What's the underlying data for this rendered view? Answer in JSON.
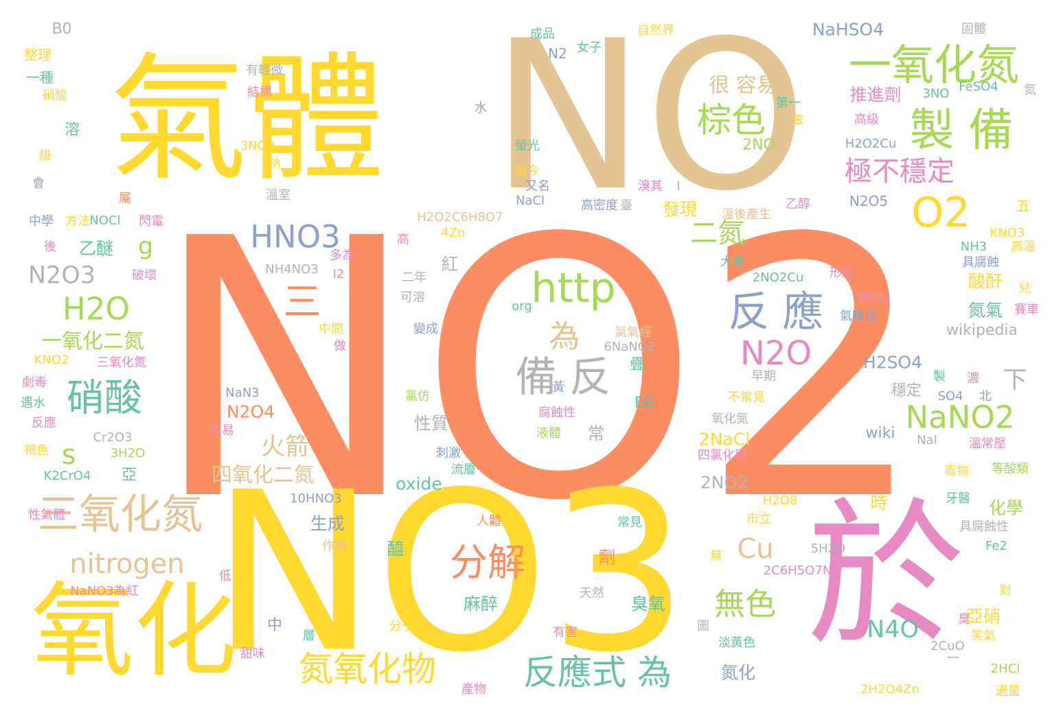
{
  "words": [
    {
      "text": "NO2",
      "color": "#fc8d62"
    },
    {
      "text": "NO3",
      "color": "#ffd92f"
    },
    {
      "text": "NO",
      "color": "#e5c494"
    },
    {
      "text": "氣體",
      "color": "#ffd92f"
    },
    {
      "text": "於",
      "color": "#e78ac3"
    },
    {
      "text": "氧化",
      "color": "#ffd92f"
    },
    {
      "text": "一氧化氮",
      "color": "#a6d854"
    },
    {
      "text": "製 備",
      "color": "#a6d854"
    },
    {
      "text": "O2",
      "color": "#ffd92f"
    },
    {
      "text": "棕色",
      "color": "#a6d854"
    },
    {
      "text": "極不穩定",
      "color": "#e78ac3"
    },
    {
      "text": "很 容易",
      "color": "#e5c494"
    },
    {
      "text": "反 應",
      "color": "#8da0cb"
    },
    {
      "text": "N2O",
      "color": "#e78ac3"
    },
    {
      "text": "HNO3",
      "color": "#8da0cb"
    },
    {
      "text": "二氮",
      "color": "#a6d854"
    },
    {
      "text": "g",
      "color": "#a6d854"
    },
    {
      "text": "H2O",
      "color": "#a6d854"
    },
    {
      "text": "N2O3",
      "color": "#b3b3b3"
    },
    {
      "text": "一氧化二氮",
      "color": "#a6d854"
    },
    {
      "text": "硝酸",
      "color": "#66c2a5"
    },
    {
      "text": "三",
      "color": "#fc8d62"
    },
    {
      "text": "http",
      "color": "#a6d854"
    },
    {
      "text": "為",
      "color": "#e5c494"
    },
    {
      "text": "備 反",
      "color": "#b3b3b3"
    },
    {
      "text": "s",
      "color": "#a6d854"
    },
    {
      "text": "三氧化氮",
      "color": "#e5c494"
    },
    {
      "text": "nitrogen",
      "color": "#e5c494"
    },
    {
      "text": "分解",
      "color": "#fc8d62"
    },
    {
      "text": "Cu",
      "color": "#e5c494"
    },
    {
      "text": "NaNO2",
      "color": "#a6d854"
    },
    {
      "text": "無色",
      "color": "#a6d854"
    },
    {
      "text": "反應式 為",
      "color": "#66c2a5"
    },
    {
      "text": "氮氧化物",
      "color": "#ffd92f"
    },
    {
      "text": "N4O",
      "color": "#66c2a5"
    },
    {
      "text": "火箭",
      "color": "#e5c494"
    },
    {
      "text": "四氧化二氮",
      "color": "#e5c494"
    },
    {
      "text": "N2O4",
      "color": "#fc8d62"
    },
    {
      "text": "推進劑",
      "color": "#e78ac3"
    },
    {
      "text": "2NO",
      "color": "#a6d854"
    },
    {
      "text": "N2O5",
      "color": "#8da0cb"
    },
    {
      "text": "NaHSO4",
      "color": "#8da0cb"
    },
    {
      "text": "H2SO4",
      "color": "#8da0cb"
    },
    {
      "text": "wikipedia",
      "color": "#b3b3b3"
    },
    {
      "text": "下",
      "color": "#b3b3b3"
    },
    {
      "text": "oxide",
      "color": "#66c2a5"
    },
    {
      "text": "2NO2",
      "color": "#b3b3b3"
    },
    {
      "text": "2NaCl",
      "color": "#ffd92f"
    },
    {
      "text": "wiki",
      "color": "#8da0cb"
    },
    {
      "text": "生成",
      "color": "#8da0cb"
    },
    {
      "text": "化學",
      "color": "#a6d854"
    },
    {
      "text": "時",
      "color": "#ffd92f"
    },
    {
      "text": "E6",
      "color": "#66c2a5"
    },
    {
      "text": "乙醚",
      "color": "#66c2a5"
    },
    {
      "text": "發現",
      "color": "#ffd92f"
    },
    {
      "text": "酸酐",
      "color": "#ffd92f"
    },
    {
      "text": "氮氣",
      "color": "#66c2a5"
    },
    {
      "text": "亞硝",
      "color": "#ffd92f"
    },
    {
      "text": "臭氧",
      "color": "#66c2a5"
    },
    {
      "text": "麻醉",
      "color": "#66c2a5"
    },
    {
      "text": "氮化",
      "color": "#8da0cb"
    },
    {
      "text": "性質",
      "color": "#b3b3b3"
    },
    {
      "text": "常",
      "color": "#b3b3b3"
    },
    {
      "text": "亞",
      "color": "#66c2a5"
    },
    {
      "text": "中",
      "color": "#8da0cb"
    },
    {
      "text": "紅",
      "color": "#b3b3b3"
    },
    {
      "text": "穩定",
      "color": "#b3b3b3"
    },
    {
      "text": "疊",
      "color": "#66c2a5"
    },
    {
      "text": "醯",
      "color": "#66c2a5"
    },
    {
      "text": "劑",
      "color": "#fc8d62"
    },
    {
      "text": "B0",
      "color": "#b3b3b3"
    },
    {
      "text": "整理",
      "color": "#ffd92f"
    },
    {
      "text": "一種",
      "color": "#66c2a5"
    },
    {
      "text": "硝酸",
      "color": "#ffd92f"
    },
    {
      "text": "溶",
      "color": "#66c2a5"
    },
    {
      "text": "級",
      "color": "#ffd92f"
    },
    {
      "text": "會",
      "color": "#8da0cb"
    },
    {
      "text": "有輕微",
      "color": "#b3b3b3"
    },
    {
      "text": "結構",
      "color": "#e78ac3"
    },
    {
      "text": "成品",
      "color": "#66c2a5"
    },
    {
      "text": "女子",
      "color": "#66c2a5"
    },
    {
      "text": "N2",
      "color": "#8da0cb"
    },
    {
      "text": "自然界",
      "color": "#ffd92f"
    },
    {
      "text": "固體",
      "color": "#b3b3b3"
    },
    {
      "text": "3NO",
      "color": "#66c2a5"
    },
    {
      "text": "FeSO4",
      "color": "#66c2a5"
    },
    {
      "text": "氮",
      "color": "#b3b3b3"
    },
    {
      "text": "水",
      "color": "#8da0cb"
    },
    {
      "text": "第一",
      "color": "#66c2a5"
    },
    {
      "text": "苯",
      "color": "#ffd92f"
    },
    {
      "text": "高級",
      "color": "#e78ac3"
    },
    {
      "text": "H2O2Cu",
      "color": "#8da0cb"
    },
    {
      "text": "3NO2",
      "color": "#ffd92f"
    },
    {
      "text": "螢光",
      "color": "#66c2a5"
    },
    {
      "text": "鈉",
      "color": "#ffd92f"
    },
    {
      "text": "現今",
      "color": "#ffd92f"
    },
    {
      "text": "溫室",
      "color": "#b3b3b3"
    },
    {
      "text": "又名",
      "color": "#8da0cb"
    },
    {
      "text": "高密度",
      "color": "#8da0cb"
    },
    {
      "text": "臺",
      "color": "#b3b3b3"
    },
    {
      "text": "NaCl",
      "color": "#8da0cb"
    },
    {
      "text": "溴其",
      "color": "#e78ac3"
    },
    {
      "text": "I",
      "color": "#b3b3b3"
    },
    {
      "text": "乙醇",
      "color": "#e78ac3"
    },
    {
      "text": "溫後產生",
      "color": "#e5c494"
    },
    {
      "text": "五",
      "color": "#ffd92f"
    },
    {
      "text": "KNO3",
      "color": "#ffd92f"
    },
    {
      "text": "NH3",
      "color": "#66c2a5"
    },
    {
      "text": "高溫",
      "color": "#ffd92f"
    },
    {
      "text": "具腐蝕",
      "color": "#8da0cb"
    },
    {
      "text": "中學",
      "color": "#8da0cb"
    },
    {
      "text": "方法",
      "color": "#ffd92f"
    },
    {
      "text": "NOCl",
      "color": "#66c2a5"
    },
    {
      "text": "閃電",
      "color": "#e78ac3"
    },
    {
      "text": "H2O2C6H8O7",
      "color": "#e5c494"
    },
    {
      "text": "4Zn",
      "color": "#ffd92f"
    },
    {
      "text": "屬",
      "color": "#fc8d62"
    },
    {
      "text": "後",
      "color": "#e78ac3"
    },
    {
      "text": "高",
      "color": "#e78ac3"
    },
    {
      "text": "NH4NO3",
      "color": "#b3b3b3"
    },
    {
      "text": "多為",
      "color": "#e78ac3"
    },
    {
      "text": "I2",
      "color": "#e78ac3"
    },
    {
      "text": "破壞",
      "color": "#e78ac3"
    },
    {
      "text": "大氣",
      "color": "#66c2a5"
    },
    {
      "text": "形成",
      "color": "#e78ac3"
    },
    {
      "text": "2NO2Cu",
      "color": "#66c2a5"
    },
    {
      "text": "二年",
      "color": "#b3b3b3"
    },
    {
      "text": "可溶",
      "color": "#b3b3b3"
    },
    {
      "text": "4NO2",
      "color": "#e78ac3"
    },
    {
      "text": "兒",
      "color": "#ffd92f"
    },
    {
      "text": "賽車",
      "color": "#e78ac3"
    },
    {
      "text": "氣味且",
      "color": "#8da0cb"
    },
    {
      "text": "org",
      "color": "#66c2a5"
    },
    {
      "text": "變成",
      "color": "#8da0cb"
    },
    {
      "text": "中間",
      "color": "#ffd92f"
    },
    {
      "text": "做",
      "color": "#e78ac3"
    },
    {
      "text": "氯氣經",
      "color": "#e5c494"
    },
    {
      "text": "6NaNO2",
      "color": "#b3b3b3"
    },
    {
      "text": "KNO2",
      "color": "#ffd92f"
    },
    {
      "text": "三氧化氮",
      "color": "#e78ac3"
    },
    {
      "text": "劇毒",
      "color": "#e78ac3"
    },
    {
      "text": "遇水",
      "color": "#66c2a5"
    },
    {
      "text": "反應",
      "color": "#e78ac3"
    },
    {
      "text": "NaN3",
      "color": "#8da0cb"
    },
    {
      "text": "黃",
      "color": "#8da0cb"
    },
    {
      "text": "氯仿",
      "color": "#a6d854"
    },
    {
      "text": "早期",
      "color": "#b3b3b3"
    },
    {
      "text": "製",
      "color": "#66c2a5"
    },
    {
      "text": "濃",
      "color": "#e78ac3"
    },
    {
      "text": "不常見",
      "color": "#ffd92f"
    },
    {
      "text": "SO4",
      "color": "#8da0cb"
    },
    {
      "text": "北",
      "color": "#8da0cb"
    },
    {
      "text": "Cr2O3",
      "color": "#b3b3b3"
    },
    {
      "text": "容易",
      "color": "#e78ac3"
    },
    {
      "text": "腐蝕性",
      "color": "#e78ac3"
    },
    {
      "text": "液體",
      "color": "#a6d854"
    },
    {
      "text": "氧化氮",
      "color": "#b3b3b3"
    },
    {
      "text": "四氯化碳",
      "color": "#e78ac3"
    },
    {
      "text": "NaI",
      "color": "#b3b3b3"
    },
    {
      "text": "溫常壓",
      "color": "#e78ac3"
    },
    {
      "text": "褐色",
      "color": "#ffd92f"
    },
    {
      "text": "3H2O",
      "color": "#a6d854"
    },
    {
      "text": "刺激",
      "color": "#8da0cb"
    },
    {
      "text": "流層",
      "color": "#66c2a5"
    },
    {
      "text": "毒物",
      "color": "#ffd92f"
    },
    {
      "text": "等酸類",
      "color": "#a6d854"
    },
    {
      "text": "K2CrO4",
      "color": "#66c2a5"
    },
    {
      "text": "10HNO3",
      "color": "#8da0cb"
    },
    {
      "text": "牙醫",
      "color": "#66c2a5"
    },
    {
      "text": "性氣體",
      "color": "#e78ac3"
    },
    {
      "text": "H2O8",
      "color": "#ffd92f"
    },
    {
      "text": "人體",
      "color": "#fc8d62"
    },
    {
      "text": "常見",
      "color": "#66c2a5"
    },
    {
      "text": "市立",
      "color": "#ffd92f"
    },
    {
      "text": "具腐蝕性",
      "color": "#b3b3b3"
    },
    {
      "text": "作用",
      "color": "#e5c494"
    },
    {
      "text": "無",
      "color": "#ffd92f"
    },
    {
      "text": "5H2O",
      "color": "#b3b3b3"
    },
    {
      "text": "Fe2",
      "color": "#66c2a5"
    },
    {
      "text": "低",
      "color": "#e78ac3"
    },
    {
      "text": "2C6H5O7Na",
      "color": "#e78ac3"
    },
    {
      "text": "NaNO3為紅",
      "color": "#e78ac3"
    },
    {
      "text": "天然",
      "color": "#b3b3b3"
    },
    {
      "text": "對",
      "color": "#ffd92f"
    },
    {
      "text": "分子",
      "color": "#ffd92f"
    },
    {
      "text": "圖",
      "color": "#b3b3b3"
    },
    {
      "text": "臭",
      "color": "#e78ac3"
    },
    {
      "text": "笑氣",
      "color": "#ffd92f"
    },
    {
      "text": "有害",
      "color": "#e78ac3"
    },
    {
      "text": "層",
      "color": "#66c2a5"
    },
    {
      "text": "淡黃色",
      "color": "#66c2a5"
    },
    {
      "text": "2CuO",
      "color": "#b3b3b3"
    },
    {
      "text": "甜味",
      "color": "#e78ac3"
    },
    {
      "text": "一",
      "color": "#b3b3b3"
    },
    {
      "text": "2HCl",
      "color": "#a6d854"
    },
    {
      "text": "產物",
      "color": "#e78ac3"
    },
    {
      "text": "2H2O4Zn",
      "color": "#ffd92f"
    },
    {
      "text": "過量",
      "color": "#ffd92f"
    }
  ]
}
